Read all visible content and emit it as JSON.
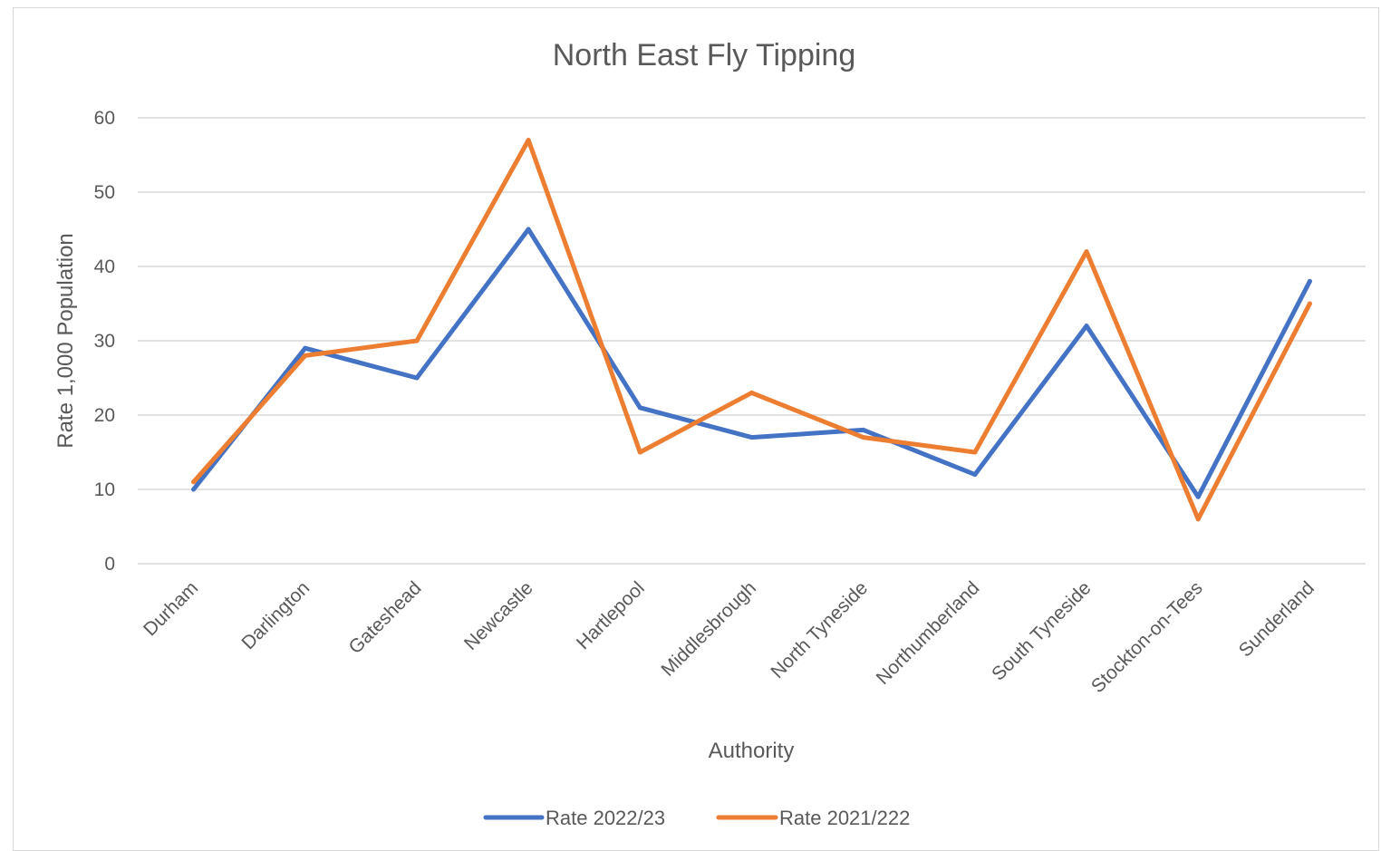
{
  "chart_data": {
    "type": "line",
    "title": "North East Fly Tipping",
    "xlabel": "Authority",
    "ylabel": "Rate 1,000 Population",
    "ylim": [
      0,
      60
    ],
    "yticks": [
      0,
      10,
      20,
      30,
      40,
      50,
      60
    ],
    "grid": true,
    "legend_position": "bottom",
    "categories": [
      "Durham",
      "Darlington",
      "Gateshead",
      "Newcastle",
      "Hartlepool",
      "Middlesbrough",
      "North Tyneside",
      "Northumberland",
      "South Tyneside",
      "Stockton-on-Tees",
      "Sunderland"
    ],
    "series": [
      {
        "name": "Rate 2022/23",
        "color": "#4472c4",
        "values": [
          10,
          29,
          25,
          45,
          21,
          17,
          18,
          12,
          32,
          9,
          38
        ]
      },
      {
        "name": "Rate 2021/222",
        "color": "#ed7d31",
        "values": [
          11,
          28,
          30,
          57,
          15,
          23,
          17,
          15,
          42,
          6,
          35
        ]
      }
    ]
  }
}
